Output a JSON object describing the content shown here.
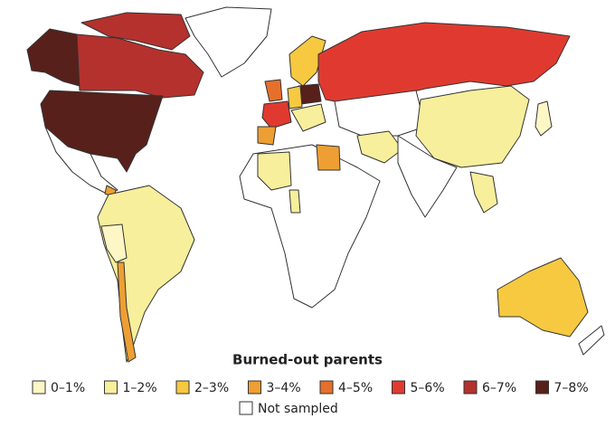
{
  "legend": {
    "title": "Burned-out parents",
    "items": [
      {
        "label": "0–1%",
        "color": "#fdf7c6"
      },
      {
        "label": "1–2%",
        "color": "#f8ef9c"
      },
      {
        "label": "2–3%",
        "color": "#f6c940"
      },
      {
        "label": "3–4%",
        "color": "#ee9f33"
      },
      {
        "label": "4–5%",
        "color": "#e6702b"
      },
      {
        "label": "5–6%",
        "color": "#e03a30"
      },
      {
        "label": "6–7%",
        "color": "#b5312d"
      },
      {
        "label": "7–8%",
        "color": "#58201b"
      }
    ],
    "not_sampled": {
      "label": "Not sampled",
      "color": "#ffffff"
    }
  }
}
